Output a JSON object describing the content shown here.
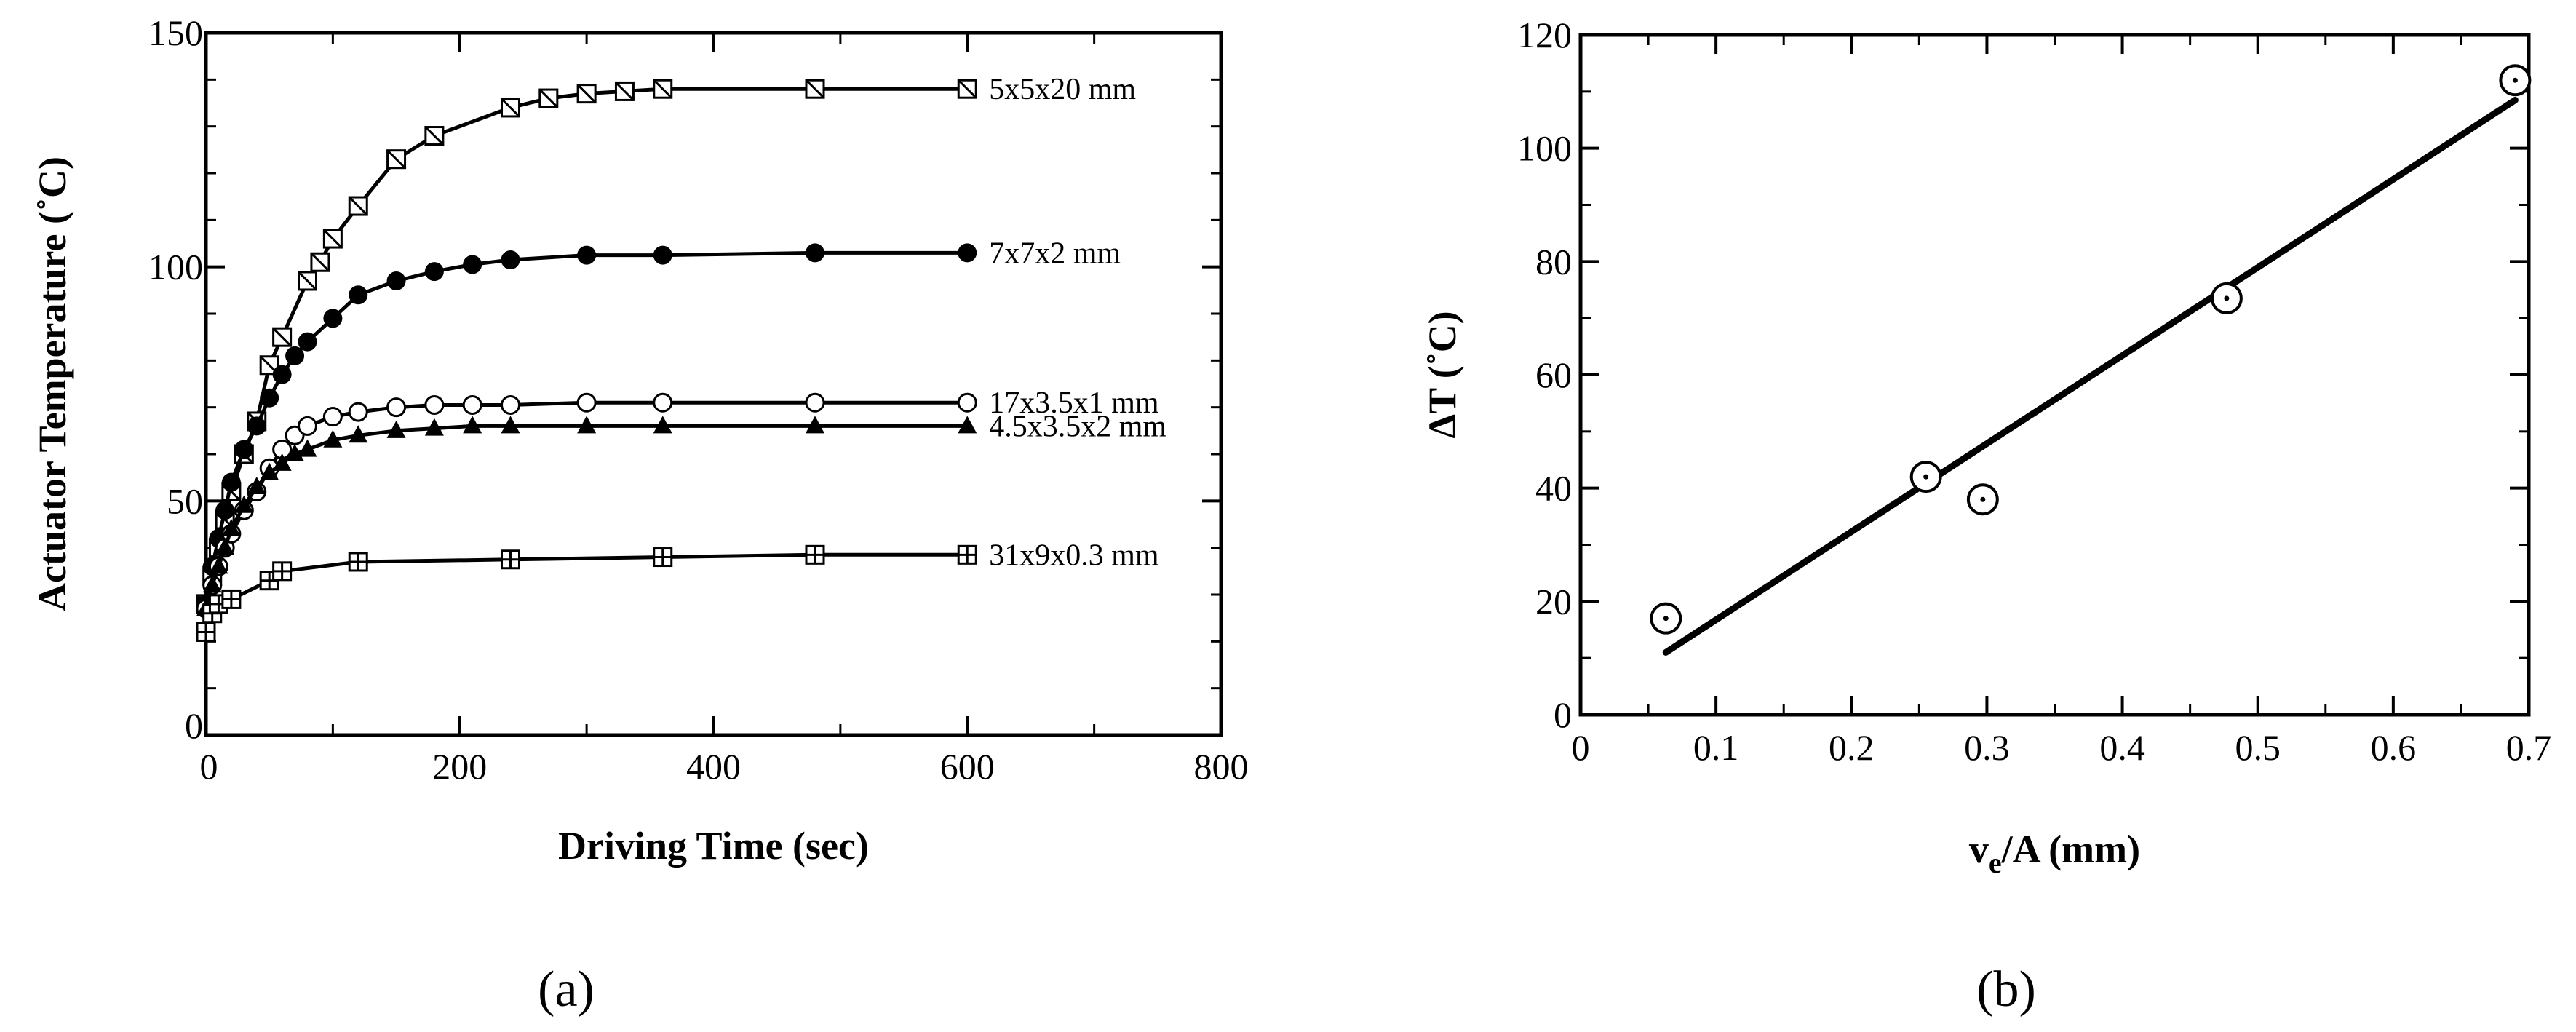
{
  "figure": {
    "panel_a_label": "(a)",
    "panel_b_label": "(b)"
  },
  "chart_data": [
    {
      "type": "line",
      "panel": "(a)",
      "xlabel": "Driving  Time  (sec)",
      "ylabel": "Actuator  Temperature  (˚C)",
      "xlim": [
        0,
        800
      ],
      "ylim": [
        0,
        150
      ],
      "xticks": [
        "0",
        "200",
        "400",
        "600",
        "800"
      ],
      "yticks": [
        "0",
        "50",
        "100",
        "150"
      ],
      "series": [
        {
          "name": "5x5x20 mm",
          "marker": "square-slash",
          "x": [
            0,
            5,
            10,
            15,
            20,
            30,
            40,
            50,
            60,
            80,
            90,
            100,
            120,
            150,
            180,
            240,
            270,
            300,
            330,
            360,
            480,
            600
          ],
          "y": [
            28,
            34,
            40,
            46,
            52,
            60,
            67,
            79,
            85,
            97,
            101,
            106,
            113,
            123,
            128,
            134,
            136,
            137,
            137.5,
            138,
            138,
            138
          ]
        },
        {
          "name": "7x7x2 mm",
          "marker": "filled-circle",
          "x": [
            0,
            5,
            10,
            15,
            20,
            30,
            40,
            50,
            60,
            70,
            80,
            100,
            120,
            150,
            180,
            210,
            240,
            300,
            360,
            480,
            600
          ],
          "y": [
            28,
            36,
            42,
            48,
            54,
            61,
            66,
            72,
            77,
            81,
            84,
            89,
            94,
            97,
            99,
            100.5,
            101.5,
            102.5,
            102.5,
            103,
            103
          ]
        },
        {
          "name": "17x3.5x1 mm",
          "marker": "open-circle",
          "x": [
            0,
            5,
            10,
            15,
            20,
            30,
            40,
            50,
            60,
            70,
            80,
            100,
            120,
            150,
            180,
            210,
            240,
            300,
            360,
            480,
            600
          ],
          "y": [
            27,
            32,
            36,
            40,
            43,
            48,
            52,
            57,
            61,
            64,
            66,
            68,
            69,
            70,
            70.5,
            70.5,
            70.5,
            71,
            71,
            71,
            71
          ]
        },
        {
          "name": "4.5x3.5x2 mm",
          "marker": "filled-triangle",
          "x": [
            0,
            5,
            10,
            15,
            20,
            30,
            40,
            50,
            60,
            70,
            80,
            100,
            120,
            150,
            180,
            210,
            240,
            300,
            360,
            480,
            600
          ],
          "y": [
            27,
            32,
            36,
            40,
            44,
            49,
            53,
            56,
            58,
            60,
            61,
            63,
            64,
            65,
            65.5,
            66,
            66,
            66,
            66,
            66,
            66
          ]
        },
        {
          "name": "31x9x0.3 mm",
          "marker": "square-cross",
          "x": [
            0,
            5,
            10,
            20,
            50,
            60,
            120,
            240,
            360,
            480,
            600
          ],
          "y": [
            22,
            26,
            28,
            29,
            33,
            35,
            37,
            37.5,
            38,
            38.5,
            38.5
          ]
        }
      ]
    },
    {
      "type": "scatter",
      "panel": "(b)",
      "xlabel": "v/A  (mm)",
      "xlabel_sub": "e",
      "ylabel": "ΔT  (˚C)",
      "xlim": [
        0,
        0.7
      ],
      "ylim": [
        0,
        120
      ],
      "xticks": [
        "0",
        "0.1",
        "0.2",
        "0.3",
        "0.4",
        "0.5",
        "0.6",
        "0.7"
      ],
      "yticks": [
        "0",
        "20",
        "40",
        "60",
        "80",
        "100",
        "120"
      ],
      "points": {
        "x": [
          0.063,
          0.255,
          0.297,
          0.477,
          0.69
        ],
        "y": [
          17,
          42,
          38,
          73.5,
          112
        ]
      },
      "fit_line": {
        "x": [
          0.063,
          0.69
        ],
        "y": [
          11,
          108.5
        ]
      }
    }
  ]
}
